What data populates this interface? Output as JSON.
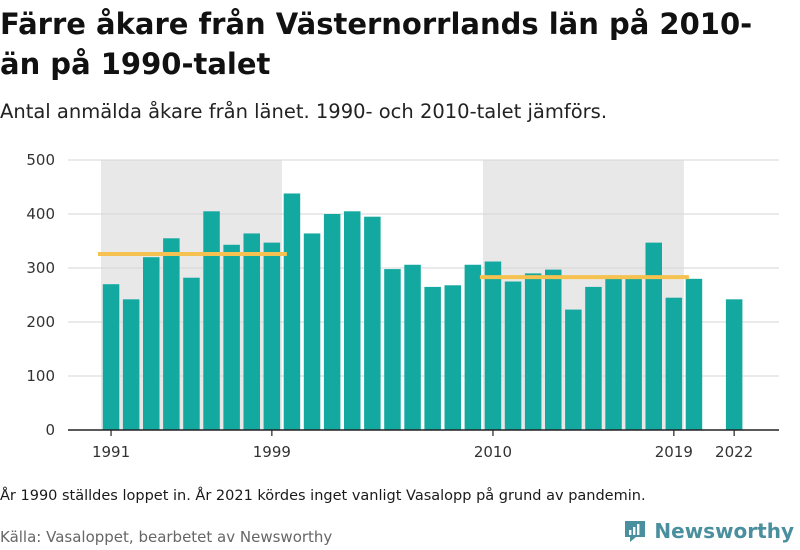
{
  "header": {
    "title": "Färre åkare från Västernorrlands län på 2010-än på 1990-talet",
    "subtitle": "Antal anmälda åkare från länet. 1990- och 2010-talet jämförs."
  },
  "footer": {
    "note": "År 1990 ställdes loppet in. År 2021 kördes inget vanligt Vasalopp på grund av pandemin.",
    "source": "Källa: Vasaloppet, bearbetet av Newsworthy",
    "brand": "Newsworthy"
  },
  "colors": {
    "bar": "#14a9a0",
    "average_line": "#f5c150",
    "decade_shade": "#e8e8e8",
    "grid": "#d6d6d6",
    "brand": "#4a8f9e"
  },
  "chart_data": {
    "type": "bar",
    "title": "",
    "xlabel": "",
    "ylabel": "",
    "ylim": [
      0,
      500
    ],
    "y_ticks": [
      0,
      100,
      200,
      300,
      400,
      500
    ],
    "x_tick_labels": [
      "1991",
      "1999",
      "2010",
      "2019",
      "2022"
    ],
    "categories": [
      "1991",
      "1992",
      "1993",
      "1994",
      "1995",
      "1996",
      "1997",
      "1998",
      "1999",
      "2000",
      "2001",
      "2002",
      "2003",
      "2004",
      "2005",
      "2006",
      "2007",
      "2008",
      "2009",
      "2010",
      "2011",
      "2012",
      "2013",
      "2014",
      "2015",
      "2016",
      "2017",
      "2018",
      "2019",
      "2020",
      "2021",
      "2022"
    ],
    "values": [
      270,
      242,
      320,
      355,
      282,
      405,
      343,
      364,
      347,
      438,
      364,
      400,
      405,
      395,
      298,
      306,
      265,
      268,
      306,
      312,
      275,
      290,
      297,
      223,
      265,
      285,
      285,
      347,
      245,
      280,
      null,
      242
    ],
    "shaded_periods": [
      {
        "from": "1991",
        "to": "1999"
      },
      {
        "from": "2010",
        "to": "2019"
      }
    ],
    "average_lines": [
      {
        "from": "1991",
        "to": "1999",
        "value": 326
      },
      {
        "from": "2010",
        "to": "2019",
        "value": 283
      }
    ],
    "grid": true
  }
}
